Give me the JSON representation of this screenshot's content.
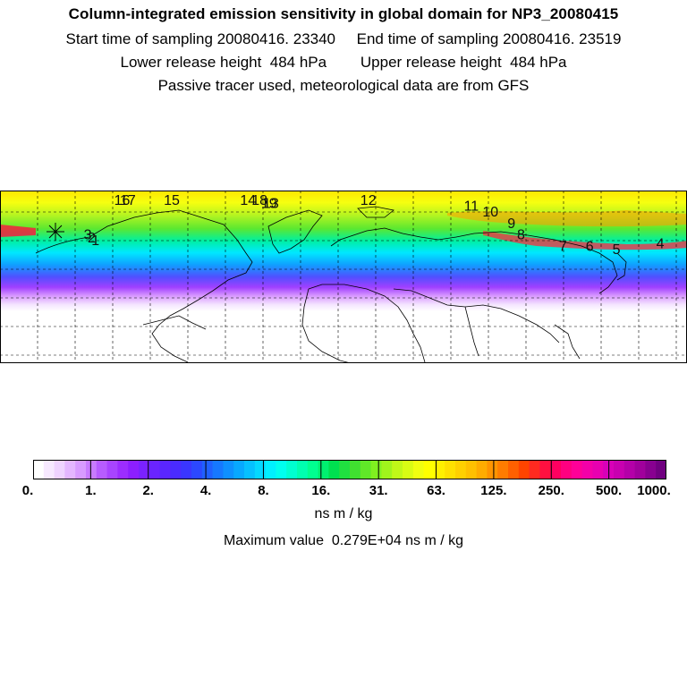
{
  "header": {
    "title": "Column-integrated emission sensitivity in global domain for NP3_20080415",
    "sampling": "Start time of sampling 20080416. 23340     End time of sampling 20080416. 23519",
    "release": "Lower release height  484 hPa        Upper release height  484 hPa",
    "note": "Passive tracer used, meteorological data are from GFS"
  },
  "colorbar": {
    "tick_labels": [
      "0.",
      "1.",
      "2.",
      "4.",
      "8.",
      "16.",
      "31.",
      "63.",
      "125.",
      "250.",
      "500.",
      "1000."
    ],
    "colors": [
      "#ffffff",
      "#f7e9ff",
      "#efd3ff",
      "#e4b6ff",
      "#d89bff",
      "#c87bff",
      "#b75cff",
      "#a844ff",
      "#9c2dff",
      "#8c1fff",
      "#7a22ff",
      "#6a24ff",
      "#5a26ff",
      "#4a2bff",
      "#3a36ff",
      "#2c48ff",
      "#2060ff",
      "#1678ff",
      "#0e90ff",
      "#08a8ff",
      "#06c0ff",
      "#04d8ff",
      "#00f0ff",
      "#00ffee",
      "#00ffd0",
      "#00ffb0",
      "#00ff90",
      "#00f070",
      "#00e050",
      "#20e040",
      "#40e030",
      "#60e828",
      "#80f020",
      "#a0f41c",
      "#c0f818",
      "#d8fc14",
      "#f0ff10",
      "#ffff00",
      "#fff000",
      "#ffe000",
      "#ffd000",
      "#ffc000",
      "#ffac00",
      "#ff9400",
      "#ff7c00",
      "#ff6000",
      "#ff4400",
      "#ff2a20",
      "#ff1040",
      "#ff0060",
      "#ff0080",
      "#ff0098",
      "#f400a8",
      "#e800b0",
      "#d800b8",
      "#c800b0",
      "#b400a8",
      "#a0009c",
      "#880090",
      "#700080"
    ],
    "units": "ns m / kg",
    "maximum": "Maximum value  0.279E+04 ns m / kg"
  },
  "trajectory_points": [
    {
      "label": "1",
      "lon": -130,
      "lat": 53
    },
    {
      "label": "2",
      "lon": -132,
      "lat": 54
    },
    {
      "label": "3",
      "lon": -134,
      "lat": 55
    },
    {
      "label": "4",
      "lon": 166,
      "lat": 52
    },
    {
      "label": "5",
      "lon": 143,
      "lat": 50
    },
    {
      "label": "6",
      "lon": 129,
      "lat": 51
    },
    {
      "label": "7",
      "lon": 115,
      "lat": 51
    },
    {
      "label": "8",
      "lon": 93,
      "lat": 55
    },
    {
      "label": "9",
      "lon": 88,
      "lat": 59
    },
    {
      "label": "10",
      "lon": 77,
      "lat": 63
    },
    {
      "label": "11",
      "lon": 67,
      "lat": 65
    },
    {
      "label": "12",
      "lon": 13,
      "lat": 67
    },
    {
      "label": "13",
      "lon": -38,
      "lat": 66
    },
    {
      "label": "14",
      "lon": -50,
      "lat": 67
    },
    {
      "label": "15",
      "lon": -90,
      "lat": 67
    },
    {
      "label": "16",
      "lon": -116,
      "lat": 67
    },
    {
      "label": "17",
      "lon": -113,
      "lat": 67
    },
    {
      "label": "18",
      "lon": -44,
      "lat": 67
    },
    {
      "label": "19",
      "lon": -39,
      "lat": 66
    }
  ]
}
